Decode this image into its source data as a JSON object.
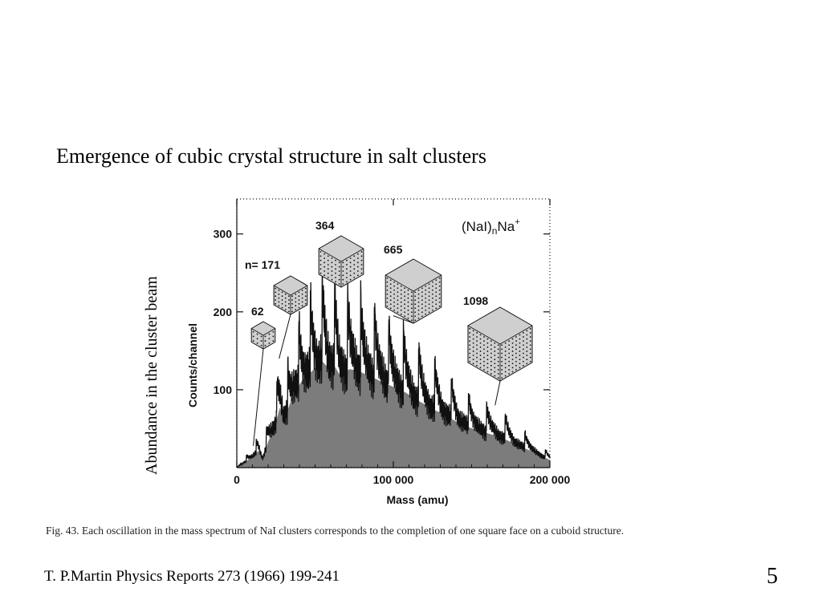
{
  "slide": {
    "title": "Emergence of cubic crystal structure in salt clusters",
    "side_label": "Abundance in the cluster beam",
    "caption": "Fig. 43.  Each oscillation in the mass spectrum of NaI clusters corresponds to the completion of one square face on a cuboid structure.",
    "citation": "T. P.Martin Physics Reports 273 (1966) 199-241",
    "page_number": "5"
  },
  "chart_data": {
    "type": "line",
    "title": "",
    "species_label": "(NaI)nNa+",
    "xlabel": "Mass (amu)",
    "ylabel": "Counts/channel",
    "xlim": [
      0,
      200000
    ],
    "ylim": [
      0,
      345
    ],
    "x_ticks": [
      0,
      100000,
      200000
    ],
    "x_tick_labels": [
      "0",
      "100 000",
      "200 000"
    ],
    "y_ticks": [
      100,
      200,
      300
    ],
    "y_tick_labels": [
      "100",
      "200",
      "300"
    ],
    "grid": false,
    "color": "#111111",
    "series": [
      {
        "x": [
          0,
          6000,
          10000,
          14000,
          16500,
          20000,
          24000,
          27500,
          30000,
          36000,
          42000,
          48000,
          54000,
          58000,
          62000,
          66000,
          72000,
          78000,
          84000,
          90000,
          96000,
          102000,
          108000,
          114000,
          120000,
          126000,
          132000,
          138000,
          144000,
          150000,
          156000,
          162000,
          168000,
          176000,
          184000,
          192000,
          200000
        ],
        "y": [
          0,
          15,
          25,
          40,
          20,
          60,
          95,
          140,
          110,
          170,
          205,
          225,
          250,
          235,
          240,
          215,
          230,
          225,
          215,
          205,
          195,
          185,
          175,
          160,
          148,
          135,
          125,
          112,
          100,
          92,
          85,
          78,
          72,
          58,
          45,
          32,
          18
        ]
      }
    ],
    "magic_numbers": [
      {
        "n": "62",
        "x": 10500,
        "y": 28
      },
      {
        "n": "n= 171",
        "x": 27000,
        "y": 140
      },
      {
        "n": "364",
        "x": 56000,
        "y": 250
      },
      {
        "n": "665",
        "x": 100000,
        "y": 195
      },
      {
        "n": "1098",
        "x": 165000,
        "y": 80
      }
    ]
  }
}
